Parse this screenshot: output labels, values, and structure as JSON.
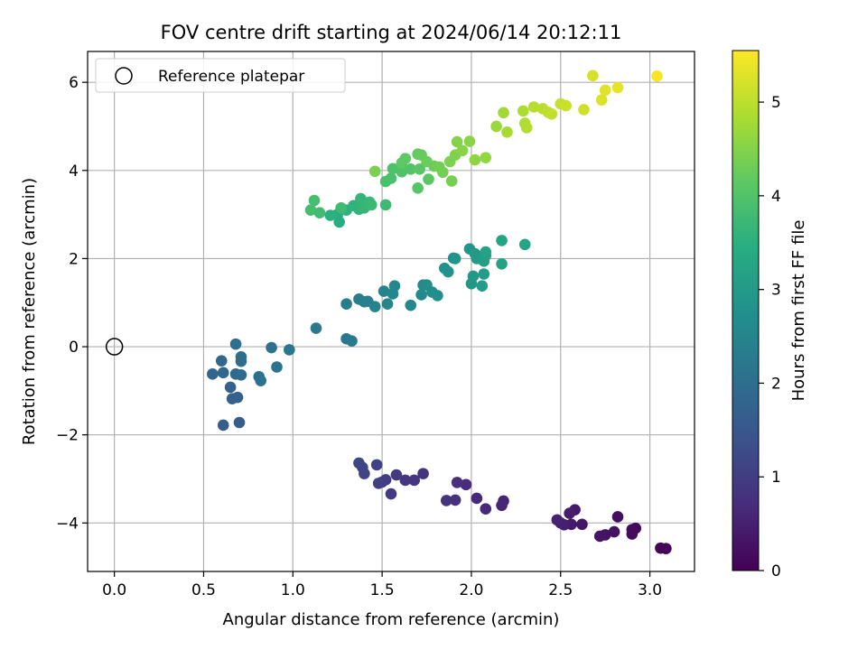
{
  "chart_data": {
    "type": "scatter",
    "title": "FOV centre drift starting at 2024/06/14 20:12:11",
    "xlabel": "Angular distance from reference (arcmin)",
    "ylabel": "Rotation from reference (arcmin)",
    "xlim": [
      -0.15,
      3.25
    ],
    "ylim": [
      -5.1,
      6.7
    ],
    "xticks": [
      0.0,
      0.5,
      1.0,
      1.5,
      2.0,
      2.5,
      3.0
    ],
    "xtick_labels": [
      "0.0",
      "0.5",
      "1.0",
      "1.5",
      "2.0",
      "2.5",
      "3.0"
    ],
    "yticks": [
      -4,
      -2,
      0,
      2,
      4,
      6
    ],
    "ytick_labels": [
      "−4",
      "−2",
      "0",
      "2",
      "4",
      "6"
    ],
    "grid": true,
    "legend": {
      "position": "top-left",
      "entries": [
        "Reference platepar"
      ]
    },
    "reference_point": {
      "x": 0.0,
      "y": 0.0
    },
    "colorbar": {
      "label": "Hours from first FF file",
      "colormap": "viridis",
      "range": [
        0,
        5.55
      ],
      "ticks": [
        0,
        1,
        2,
        3,
        4,
        5
      ],
      "tick_labels": [
        "0",
        "1",
        "2",
        "3",
        "4",
        "5"
      ]
    },
    "points": [
      [
        3.09,
        -4.58,
        0.05
      ],
      [
        3.06,
        -4.57,
        0.08
      ],
      [
        2.92,
        -4.12,
        0.12
      ],
      [
        2.9,
        -4.15,
        0.15
      ],
      [
        2.9,
        -4.25,
        0.18
      ],
      [
        2.82,
        -3.86,
        0.22
      ],
      [
        2.8,
        -4.2,
        0.25
      ],
      [
        2.75,
        -4.27,
        0.28
      ],
      [
        2.72,
        -4.3,
        0.31
      ],
      [
        2.62,
        -4.03,
        0.34
      ],
      [
        2.58,
        -3.7,
        0.37
      ],
      [
        2.56,
        -4.03,
        0.4
      ],
      [
        2.55,
        -3.78,
        0.43
      ],
      [
        2.52,
        -4.04,
        0.46
      ],
      [
        2.5,
        -4.0,
        0.49
      ],
      [
        2.48,
        -3.93,
        0.52
      ],
      [
        2.18,
        -3.5,
        0.56
      ],
      [
        2.17,
        -3.6,
        0.6
      ],
      [
        2.08,
        -3.68,
        0.63
      ],
      [
        2.03,
        -3.44,
        0.66
      ],
      [
        1.97,
        -3.13,
        0.7
      ],
      [
        1.92,
        -3.08,
        0.73
      ],
      [
        1.91,
        -3.48,
        0.76
      ],
      [
        1.86,
        -3.49,
        0.8
      ],
      [
        1.73,
        -2.88,
        0.83
      ],
      [
        1.68,
        -3.03,
        0.86
      ],
      [
        1.63,
        -3.03,
        0.89
      ],
      [
        1.58,
        -2.91,
        0.93
      ],
      [
        1.55,
        -3.34,
        0.96
      ],
      [
        1.52,
        -3.02,
        0.99
      ],
      [
        1.5,
        -3.07,
        1.02
      ],
      [
        1.48,
        -3.1,
        1.05
      ],
      [
        1.47,
        -2.68,
        1.08
      ],
      [
        1.4,
        -2.88,
        1.11
      ],
      [
        1.39,
        -2.74,
        1.14
      ],
      [
        1.37,
        -2.64,
        1.17
      ],
      [
        0.7,
        -1.72,
        1.62
      ],
      [
        0.61,
        -1.78,
        1.65
      ],
      [
        0.69,
        -1.15,
        1.7
      ],
      [
        0.66,
        -1.18,
        1.73
      ],
      [
        0.65,
        -0.92,
        1.76
      ],
      [
        0.55,
        -0.62,
        1.79
      ],
      [
        0.6,
        -0.32,
        1.82
      ],
      [
        0.61,
        -0.59,
        1.85
      ],
      [
        0.68,
        -0.62,
        1.88
      ],
      [
        0.71,
        -0.64,
        1.91
      ],
      [
        0.71,
        -0.33,
        1.94
      ],
      [
        0.71,
        -0.23,
        1.97
      ],
      [
        0.68,
        0.06,
        2.0
      ],
      [
        0.81,
        -0.68,
        2.03
      ],
      [
        0.82,
        -0.77,
        2.06
      ],
      [
        0.88,
        -0.02,
        2.09
      ],
      [
        0.91,
        -0.46,
        2.12
      ],
      [
        0.98,
        -0.07,
        2.15
      ],
      [
        1.13,
        0.42,
        2.19
      ],
      [
        1.3,
        0.18,
        2.22
      ],
      [
        1.33,
        0.13,
        2.25
      ],
      [
        1.3,
        0.97,
        2.32
      ],
      [
        1.37,
        1.08,
        2.35
      ],
      [
        1.4,
        1.02,
        2.38
      ],
      [
        1.42,
        1.03,
        2.41
      ],
      [
        1.46,
        0.91,
        2.44
      ],
      [
        1.51,
        1.26,
        2.47
      ],
      [
        1.53,
        0.97,
        2.5
      ],
      [
        1.56,
        1.2,
        2.53
      ],
      [
        1.57,
        1.38,
        2.56
      ],
      [
        1.66,
        0.94,
        2.59
      ],
      [
        1.72,
        1.18,
        2.62
      ],
      [
        1.73,
        1.4,
        2.65
      ],
      [
        1.75,
        1.4,
        2.68
      ],
      [
        1.78,
        1.24,
        2.71
      ],
      [
        1.81,
        1.16,
        2.74
      ],
      [
        1.85,
        1.78,
        2.77
      ],
      [
        1.87,
        1.7,
        2.8
      ],
      [
        1.9,
        2.01,
        2.83
      ],
      [
        1.91,
        2.0,
        2.86
      ],
      [
        1.99,
        2.22,
        2.89
      ],
      [
        2.0,
        1.43,
        2.92
      ],
      [
        2.01,
        1.6,
        2.95
      ],
      [
        2.02,
        2.11,
        2.98
      ],
      [
        2.03,
        2.0,
        3.01
      ],
      [
        2.06,
        1.38,
        3.04
      ],
      [
        2.07,
        1.65,
        3.07
      ],
      [
        2.07,
        1.94,
        3.1
      ],
      [
        2.08,
        2.07,
        3.13
      ],
      [
        2.08,
        2.15,
        3.16
      ],
      [
        2.17,
        1.88,
        3.19
      ],
      [
        2.17,
        2.41,
        3.22
      ],
      [
        2.3,
        2.32,
        3.25
      ],
      [
        1.26,
        2.83,
        3.45
      ],
      [
        1.25,
        3.0,
        3.48
      ],
      [
        1.21,
        2.98,
        3.51
      ],
      [
        1.3,
        3.1,
        3.54
      ],
      [
        1.34,
        3.2,
        3.57
      ],
      [
        1.37,
        3.12,
        3.6
      ],
      [
        1.38,
        3.36,
        3.63
      ],
      [
        1.4,
        3.15,
        3.66
      ],
      [
        1.43,
        3.28,
        3.69
      ],
      [
        1.44,
        3.22,
        3.72
      ],
      [
        1.52,
        3.22,
        3.75
      ],
      [
        1.27,
        3.15,
        3.78
      ],
      [
        1.15,
        3.04,
        3.81
      ],
      [
        1.1,
        3.1,
        3.84
      ],
      [
        1.12,
        3.32,
        3.87
      ],
      [
        1.52,
        3.75,
        3.9
      ],
      [
        1.55,
        3.82,
        3.93
      ],
      [
        1.56,
        4.04,
        3.96
      ],
      [
        1.61,
        3.97,
        3.99
      ],
      [
        1.66,
        4.03,
        4.02
      ],
      [
        1.7,
        3.6,
        4.05
      ],
      [
        1.71,
        4.03,
        4.08
      ],
      [
        1.76,
        3.8,
        4.11
      ],
      [
        1.61,
        4.17,
        4.14
      ],
      [
        1.63,
        4.27,
        4.17
      ],
      [
        1.7,
        4.37,
        4.2
      ],
      [
        1.72,
        4.35,
        4.23
      ],
      [
        1.75,
        4.2,
        4.26
      ],
      [
        1.79,
        4.1,
        4.29
      ],
      [
        1.82,
        4.08,
        4.32
      ],
      [
        1.84,
        3.96,
        4.35
      ],
      [
        1.89,
        3.76,
        4.38
      ],
      [
        1.46,
        3.98,
        4.41
      ],
      [
        1.88,
        4.2,
        4.44
      ],
      [
        1.91,
        4.35,
        4.47
      ],
      [
        1.92,
        4.65,
        4.5
      ],
      [
        1.95,
        4.45,
        4.53
      ],
      [
        1.99,
        4.66,
        4.56
      ],
      [
        2.02,
        4.24,
        4.59
      ],
      [
        2.08,
        4.29,
        4.62
      ],
      [
        2.14,
        5.0,
        4.7
      ],
      [
        2.18,
        5.31,
        4.75
      ],
      [
        2.2,
        4.87,
        4.8
      ],
      [
        2.29,
        5.35,
        4.85
      ],
      [
        2.3,
        5.07,
        4.88
      ],
      [
        2.31,
        4.97,
        4.91
      ],
      [
        2.35,
        5.44,
        4.94
      ],
      [
        2.4,
        5.4,
        4.97
      ],
      [
        2.43,
        5.32,
        5.0
      ],
      [
        2.45,
        5.28,
        5.03
      ],
      [
        2.5,
        5.51,
        5.06
      ],
      [
        2.53,
        5.47,
        5.1
      ],
      [
        2.63,
        5.38,
        5.14
      ],
      [
        2.68,
        6.15,
        5.2
      ],
      [
        2.73,
        5.6,
        5.25
      ],
      [
        2.75,
        5.82,
        5.3
      ],
      [
        2.82,
        5.88,
        5.35
      ],
      [
        3.04,
        6.14,
        5.5
      ]
    ]
  }
}
